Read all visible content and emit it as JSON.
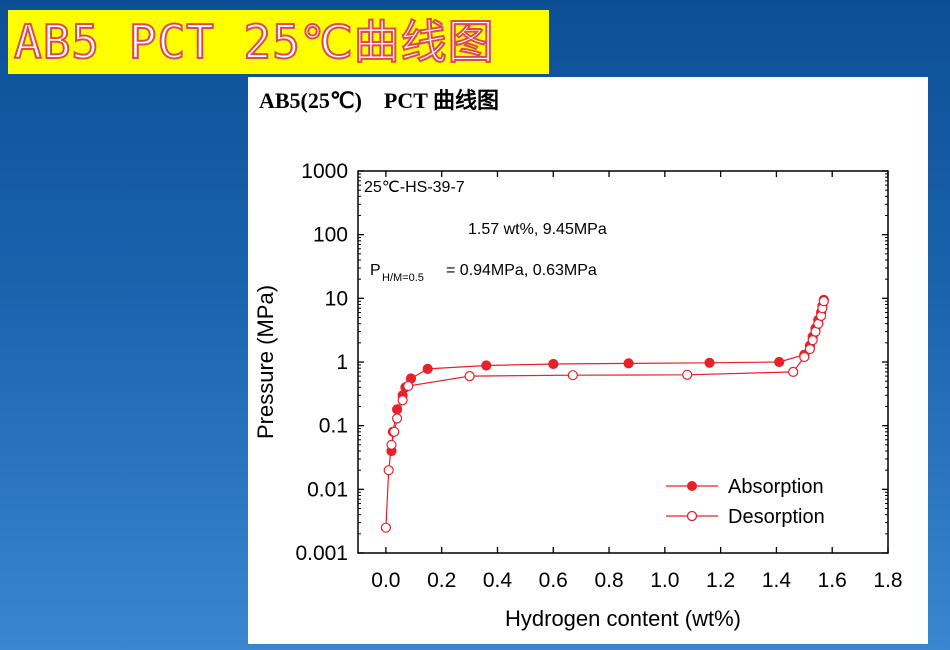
{
  "slide": {
    "title": "AB5 PCT 25℃曲线图",
    "background_color": "#1a64ad",
    "title_bg_color": "#ffff00",
    "title_text_color": "#e0474f"
  },
  "panel": {
    "title": "AB5(25℃)    PCT 曲线图"
  },
  "chart_data": {
    "type": "scatter",
    "yscale": "log",
    "xlabel": "Hydrogen content (wt%)",
    "ylabel": "Pressure (MPa)",
    "xlim": [
      -0.1,
      1.8
    ],
    "ylim": [
      0.001,
      1000
    ],
    "x_ticks": [
      "0.0",
      "0.2",
      "0.4",
      "0.6",
      "0.8",
      "1.0",
      "1.2",
      "1.4",
      "1.6",
      "1.8"
    ],
    "x_tick_values": [
      0,
      0.2,
      0.4,
      0.6,
      0.8,
      1.0,
      1.2,
      1.4,
      1.6,
      1.8
    ],
    "y_ticks": [
      "1000",
      "100",
      "10",
      "1",
      "0.1",
      "0.01",
      "0.001"
    ],
    "y_tick_values": [
      1000,
      100,
      10,
      1,
      0.1,
      0.01,
      0.001
    ],
    "line_color": "#e8202a",
    "annotations": {
      "sample": "25℃-HS-39-7",
      "max": "1.57 wt%, 9.45MPa",
      "plateau_main": "P",
      "plateau_sub": "H/M=0.5",
      "plateau_val": "=  0.94MPa, 0.63MPa"
    },
    "legend_position": "bottom-right",
    "series": [
      {
        "name": "Absorption",
        "marker": "filled-circle",
        "points": [
          [
            0.02,
            0.04
          ],
          [
            0.025,
            0.08
          ],
          [
            0.04,
            0.18
          ],
          [
            0.06,
            0.3
          ],
          [
            0.07,
            0.4
          ],
          [
            0.09,
            0.55
          ],
          [
            0.15,
            0.78
          ],
          [
            0.36,
            0.88
          ],
          [
            0.6,
            0.93
          ],
          [
            0.87,
            0.95
          ],
          [
            1.16,
            0.97
          ],
          [
            1.41,
            1.0
          ],
          [
            1.5,
            1.3
          ],
          [
            1.52,
            1.8
          ],
          [
            1.53,
            2.5
          ],
          [
            1.54,
            3.4
          ],
          [
            1.55,
            4.6
          ],
          [
            1.56,
            6.0
          ],
          [
            1.565,
            7.6
          ],
          [
            1.57,
            9.45
          ]
        ]
      },
      {
        "name": "Desorption",
        "marker": "open-circle",
        "points": [
          [
            0.0,
            0.0025
          ],
          [
            0.01,
            0.02
          ],
          [
            0.02,
            0.05
          ],
          [
            0.03,
            0.08
          ],
          [
            0.04,
            0.13
          ],
          [
            0.06,
            0.25
          ],
          [
            0.08,
            0.42
          ],
          [
            0.3,
            0.6
          ],
          [
            0.67,
            0.62
          ],
          [
            1.08,
            0.63
          ],
          [
            1.46,
            0.7
          ],
          [
            1.5,
            1.2
          ],
          [
            1.52,
            1.6
          ],
          [
            1.53,
            2.2
          ],
          [
            1.54,
            3.0
          ],
          [
            1.55,
            4.0
          ],
          [
            1.56,
            5.3
          ],
          [
            1.565,
            7.0
          ],
          [
            1.57,
            9.0
          ]
        ]
      }
    ]
  }
}
